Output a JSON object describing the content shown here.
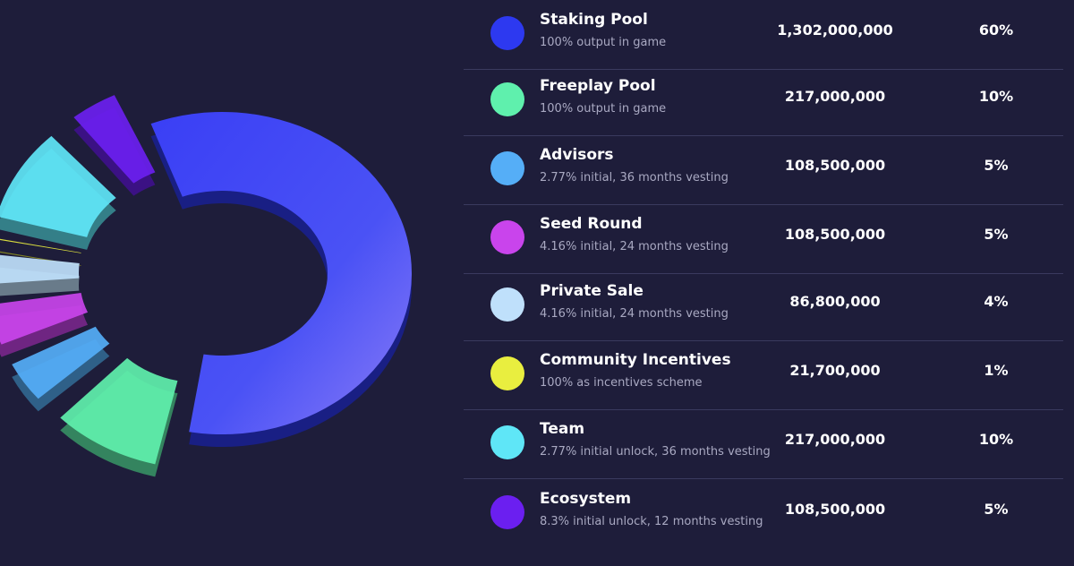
{
  "chart_data": {
    "type": "pie",
    "variant": "donut",
    "title": "",
    "series": [
      {
        "name": "Staking Pool",
        "description": "100% output in game",
        "amount": "1,302,000,000",
        "percent_label": "60%",
        "value": 60,
        "color": "#2d39f0"
      },
      {
        "name": "Freeplay Pool",
        "description": "100% output in game",
        "amount": "217,000,000",
        "percent_label": "10%",
        "value": 10,
        "color": "#5ff0ad"
      },
      {
        "name": "Advisors",
        "description": "2.77% initial, 36 months vesting",
        "amount": "108,500,000",
        "percent_label": "5%",
        "value": 5,
        "color": "#55aef7"
      },
      {
        "name": "Seed Round",
        "description": "4.16% initial, 24 months vesting",
        "amount": "108,500,000",
        "percent_label": "5%",
        "value": 5,
        "color": "#c944ec"
      },
      {
        "name": "Private Sale",
        "description": "4.16% initial, 24 months vesting",
        "amount": "86,800,000",
        "percent_label": "4%",
        "value": 4,
        "color": "#bfe0fb"
      },
      {
        "name": "Community Incentives",
        "description": "100% as incentives scheme",
        "amount": "21,700,000",
        "percent_label": "1%",
        "value": 1,
        "color": "#e9ee3f"
      },
      {
        "name": "Team",
        "description": "2.77% initial unlock, 36 months vesting",
        "amount": "217,000,000",
        "percent_label": "10%",
        "value": 10,
        "color": "#5fe6f7"
      },
      {
        "name": "Ecosystem",
        "description": "8.3% initial unlock, 12 months vesting",
        "amount": "108,500,000",
        "percent_label": "5%",
        "value": 5,
        "color": "#6b1ff0"
      }
    ]
  }
}
